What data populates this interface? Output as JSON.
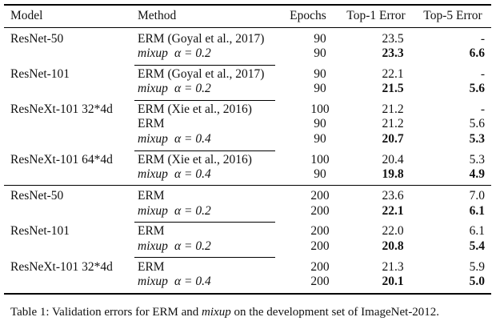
{
  "headers": [
    "Model",
    "Method",
    "Epochs",
    "Top-1 Error",
    "Top-5 Error"
  ],
  "rows": [
    {
      "model": "ResNet-50",
      "method_prefix": "ERM (Goyal et al., 2017)",
      "method_mixup": "",
      "method_alpha": "",
      "epochs": "90",
      "top1": "23.5",
      "top1_bold": false,
      "top5": "-",
      "top5_bold": false
    },
    {
      "model": "",
      "method_prefix": "",
      "method_mixup": "mixup",
      "method_alpha": "α = 0.2",
      "epochs": "90",
      "top1": "23.3",
      "top1_bold": true,
      "top5": "6.6",
      "top5_bold": true
    },
    {
      "model": "ResNet-101",
      "method_prefix": "ERM (Goyal et al., 2017)",
      "method_mixup": "",
      "method_alpha": "",
      "epochs": "90",
      "top1": "22.1",
      "top1_bold": false,
      "top5": "-",
      "top5_bold": false
    },
    {
      "model": "",
      "method_prefix": "",
      "method_mixup": "mixup",
      "method_alpha": "α = 0.2",
      "epochs": "90",
      "top1": "21.5",
      "top1_bold": true,
      "top5": "5.6",
      "top5_bold": true
    },
    {
      "model": "ResNeXt-101 32*4d",
      "method_prefix": "ERM (Xie et al., 2016)",
      "method_mixup": "",
      "method_alpha": "",
      "epochs": "100",
      "top1": "21.2",
      "top1_bold": false,
      "top5": "-",
      "top5_bold": false
    },
    {
      "model": "",
      "method_prefix": "ERM",
      "method_mixup": "",
      "method_alpha": "",
      "epochs": "90",
      "top1": "21.2",
      "top1_bold": false,
      "top5": "5.6",
      "top5_bold": false
    },
    {
      "model": "",
      "method_prefix": "",
      "method_mixup": "mixup",
      "method_alpha": "α = 0.4",
      "epochs": "90",
      "top1": "20.7",
      "top1_bold": true,
      "top5": "5.3",
      "top5_bold": true
    },
    {
      "model": "ResNeXt-101 64*4d",
      "method_prefix": "ERM (Xie et al., 2016)",
      "method_mixup": "",
      "method_alpha": "",
      "epochs": "100",
      "top1": "20.4",
      "top1_bold": false,
      "top5": "5.3",
      "top5_bold": false
    },
    {
      "model": "",
      "method_prefix": "",
      "method_mixup": "mixup",
      "method_alpha": "α = 0.4",
      "epochs": "90",
      "top1": "19.8",
      "top1_bold": true,
      "top5": "4.9",
      "top5_bold": true
    },
    {
      "model": "ResNet-50",
      "method_prefix": "ERM",
      "method_mixup": "",
      "method_alpha": "",
      "epochs": "200",
      "top1": "23.6",
      "top1_bold": false,
      "top5": "7.0",
      "top5_bold": false
    },
    {
      "model": "",
      "method_prefix": "",
      "method_mixup": "mixup",
      "method_alpha": "α = 0.2",
      "epochs": "200",
      "top1": "22.1",
      "top1_bold": true,
      "top5": "6.1",
      "top5_bold": true
    },
    {
      "model": "ResNet-101",
      "method_prefix": "ERM",
      "method_mixup": "",
      "method_alpha": "",
      "epochs": "200",
      "top1": "22.0",
      "top1_bold": false,
      "top5": "6.1",
      "top5_bold": false
    },
    {
      "model": "",
      "method_prefix": "",
      "method_mixup": "mixup",
      "method_alpha": "α = 0.2",
      "epochs": "200",
      "top1": "20.8",
      "top1_bold": true,
      "top5": "5.4",
      "top5_bold": true
    },
    {
      "model": "ResNeXt-101 32*4d",
      "method_prefix": "ERM",
      "method_mixup": "",
      "method_alpha": "",
      "epochs": "200",
      "top1": "21.3",
      "top1_bold": false,
      "top5": "5.9",
      "top5_bold": false
    },
    {
      "model": "",
      "method_prefix": "",
      "method_mixup": "mixup",
      "method_alpha": "α = 0.4",
      "epochs": "200",
      "top1": "20.1",
      "top1_bold": true,
      "top5": "5.0",
      "top5_bold": true
    }
  ],
  "caption": {
    "prefix": "Table 1: Validation errors for ERM and ",
    "mixup": "mixup",
    "suffix": " on the development set of ImageNet-2012."
  }
}
